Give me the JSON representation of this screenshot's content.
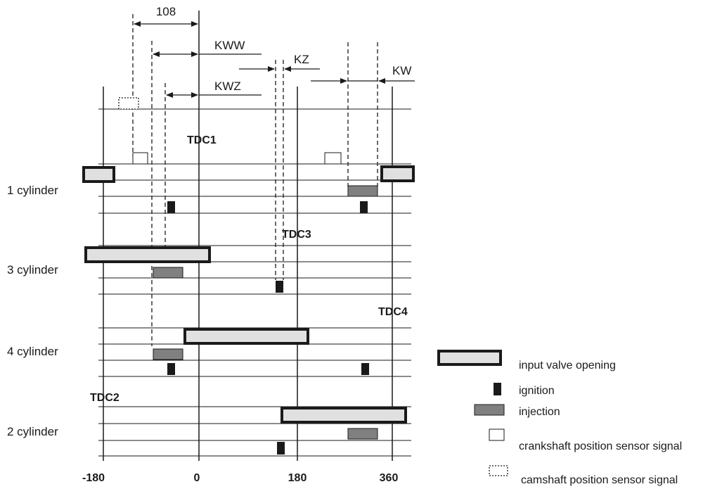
{
  "cylinders": [
    {
      "label": "1 cylinder"
    },
    {
      "label": "3 cylinder"
    },
    {
      "label": "4 cylinder"
    },
    {
      "label": "2 cylinder"
    }
  ],
  "tdc_labels": {
    "tdc1": "TDC1",
    "tdc2": "TDC2",
    "tdc3": "TDC3",
    "tdc4": "TDC4"
  },
  "axis_ticks": [
    "-180",
    "0",
    "180",
    "360"
  ],
  "dimensions": {
    "d108": "108",
    "kww": "KWW",
    "kwz": "KWZ",
    "kz": "KZ",
    "kw": "KW"
  },
  "legend": [
    {
      "key": "valve",
      "label": "input valve opening"
    },
    {
      "key": "ignition",
      "label": "ignition"
    },
    {
      "key": "injection",
      "label": "injection"
    },
    {
      "key": "crank",
      "label": "crankshaft position sensor signal"
    },
    {
      "key": "cam",
      "label": "camshaft position sensor signal"
    }
  ],
  "colors": {
    "valve_fill": "#e0e0e0",
    "injection_fill": "#808080",
    "ignition_fill": "#1a1a1a",
    "line": "#1a1a1a"
  }
}
